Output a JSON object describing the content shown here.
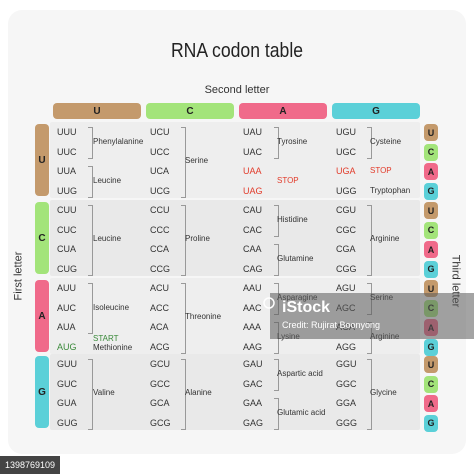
{
  "title": "RNA codon table",
  "second_letter_label": "Second letter",
  "first_letter_label": "First letter",
  "third_letter_label": "Third letter",
  "colors": {
    "U": "#c49a6c",
    "C": "#a3e47a",
    "A": "#f06a8a",
    "G": "#5bd0d8",
    "red": "#e23b2a",
    "green": "#3a8a3a"
  },
  "columns": [
    "U",
    "C",
    "A",
    "G"
  ],
  "rows": [
    {
      "first": "U",
      "codons": [
        [
          "UUU",
          "UUC",
          "UUA",
          "UUG"
        ],
        [
          "UCU",
          "UCC",
          "UCA",
          "UCG"
        ],
        [
          "UAU",
          "UAC",
          "UAA",
          "UAG"
        ],
        [
          "UGU",
          "UGC",
          "UGA",
          "UGG"
        ]
      ],
      "aminos": [
        [
          "Phenylalanine",
          "Leucine"
        ],
        [
          "Serine"
        ],
        [
          "Tyrosine",
          "STOP"
        ],
        [
          "Cysteine",
          "STOP",
          "Tryptophan"
        ]
      ]
    },
    {
      "first": "C",
      "codons": [
        [
          "CUU",
          "CUC",
          "CUA",
          "CUG"
        ],
        [
          "CCU",
          "CCC",
          "CCA",
          "CCG"
        ],
        [
          "CAU",
          "CAC",
          "CAA",
          "CAG"
        ],
        [
          "CGU",
          "CGC",
          "CGA",
          "CGG"
        ]
      ],
      "aminos": [
        [
          "Leucine"
        ],
        [
          "Proline"
        ],
        [
          "Histidine",
          "Glutamine"
        ],
        [
          "Arginine"
        ]
      ]
    },
    {
      "first": "A",
      "codons": [
        [
          "AUU",
          "AUC",
          "AUA",
          "AUG"
        ],
        [
          "ACU",
          "ACC",
          "ACA",
          "ACG"
        ],
        [
          "AAU",
          "AAC",
          "AAA",
          "AAG"
        ],
        [
          "AGU",
          "AGC",
          "AGA",
          "AGG"
        ]
      ],
      "aminos": [
        [
          "Isoleucine",
          "START",
          "Methionine"
        ],
        [
          "Threonine"
        ],
        [
          "Asparagine",
          "Lysine"
        ],
        [
          "Serine",
          "Arginine"
        ]
      ]
    },
    {
      "first": "G",
      "codons": [
        [
          "GUU",
          "GUC",
          "GUA",
          "GUG"
        ],
        [
          "GCU",
          "GCC",
          "GCA",
          "GCG"
        ],
        [
          "GAU",
          "GAC",
          "GAA",
          "GAG"
        ],
        [
          "GGU",
          "GGC",
          "GGA",
          "GGG"
        ]
      ],
      "aminos": [
        [
          "Valine"
        ],
        [
          "Alanine"
        ],
        [
          "Aspartic acid",
          "Glutamic acid"
        ],
        [
          "Glycine"
        ]
      ]
    }
  ],
  "third_letters": [
    "U",
    "C",
    "A",
    "G"
  ],
  "watermark": {
    "brand": "iStock",
    "credit": "Credit: Rujirat Boonyong",
    "id": "1398769109"
  }
}
